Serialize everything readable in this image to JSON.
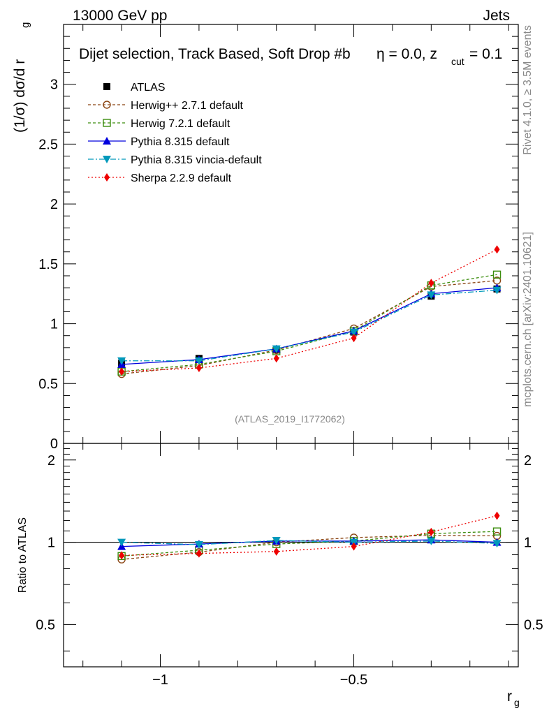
{
  "header": {
    "left": "13000 GeV pp",
    "right": "Jets"
  },
  "side_labels": {
    "rivet": "Rivet 4.1.0, ≥ 3.5M events",
    "mcplots": "mcplots.cern.ch [arXiv:2401.10621]"
  },
  "chart_data": {
    "type": "line",
    "title": "Dijet selection, Track Based, Soft Drop #b",
    "title_tail": "η = 0.0, z",
    "title_sub": "cut",
    "title_end": " = 0.1",
    "analysis_tag": "(ATLAS_2019_I1772062)",
    "xlabel": "r",
    "xlabel_sub": "g",
    "ylabel": "(1/σ) dσ/d r",
    "ylabel_sub": "g",
    "ratio_ylabel": "Ratio to ATLAS",
    "xlim": [
      -1.25,
      -0.075
    ],
    "ylim": [
      0,
      3.5
    ],
    "ratio_ylim": [
      0.35,
      2.3
    ],
    "x_ticks": [
      -1,
      -0.5
    ],
    "x_tick_labels": [
      "−1",
      "−0.5"
    ],
    "y_ticks": [
      0,
      0.5,
      1,
      1.5,
      2,
      2.5,
      3
    ],
    "y_tick_labels": [
      "0",
      "0.5",
      "1",
      "1.5",
      "2",
      "2.5",
      "3"
    ],
    "ratio_ticks": [
      0.5,
      1,
      2
    ],
    "ratio_tick_labels": [
      "0.5",
      "1",
      "2"
    ],
    "x": [
      -1.1,
      -0.9,
      -0.7,
      -0.5,
      -0.3,
      -0.13
    ],
    "series": [
      {
        "name": "ATLAS",
        "color": "#000000",
        "marker": "square-filled",
        "dash": "none",
        "values": [
          0.67,
          0.71,
          0.78,
          0.93,
          1.23,
          1.29
        ],
        "ratio": [
          1.0,
          1.0,
          1.0,
          1.0,
          1.0,
          1.0
        ]
      },
      {
        "name": "Herwig++ 2.7.1 default",
        "color": "#8b4513",
        "marker": "circle-open",
        "dash": "4,3",
        "values": [
          0.58,
          0.65,
          0.78,
          0.96,
          1.31,
          1.36
        ],
        "ratio": [
          0.865,
          0.92,
          1.0,
          1.04,
          1.06,
          1.055
        ]
      },
      {
        "name": "Herwig 7.2.1 default",
        "color": "#3c8d0e",
        "marker": "square-open",
        "dash": "4,3",
        "values": [
          0.6,
          0.66,
          0.77,
          0.94,
          1.32,
          1.41
        ],
        "ratio": [
          0.89,
          0.935,
          0.985,
          1.01,
          1.075,
          1.095
        ]
      },
      {
        "name": "Pythia 8.315 default",
        "color": "#0000dd",
        "marker": "triangle-up",
        "dash": "none",
        "values": [
          0.66,
          0.7,
          0.79,
          0.94,
          1.25,
          1.3
        ],
        "ratio": [
          0.965,
          0.985,
          1.01,
          1.01,
          1.02,
          1.0
        ]
      },
      {
        "name": "Pythia 8.315 vincia-default",
        "color": "#0099bb",
        "marker": "triangle-down",
        "dash": "8,3,2,3",
        "values": [
          0.69,
          0.69,
          0.79,
          0.93,
          1.24,
          1.28
        ],
        "ratio": [
          1.0,
          0.98,
          1.015,
          1.0,
          1.01,
          0.99
        ]
      },
      {
        "name": "Sherpa 2.2.9 default",
        "color": "#ee0000",
        "marker": "diamond",
        "dash": "2,3",
        "values": [
          0.6,
          0.63,
          0.71,
          0.88,
          1.34,
          1.62
        ],
        "ratio": [
          0.895,
          0.91,
          0.925,
          0.965,
          1.09,
          1.25
        ]
      }
    ]
  }
}
